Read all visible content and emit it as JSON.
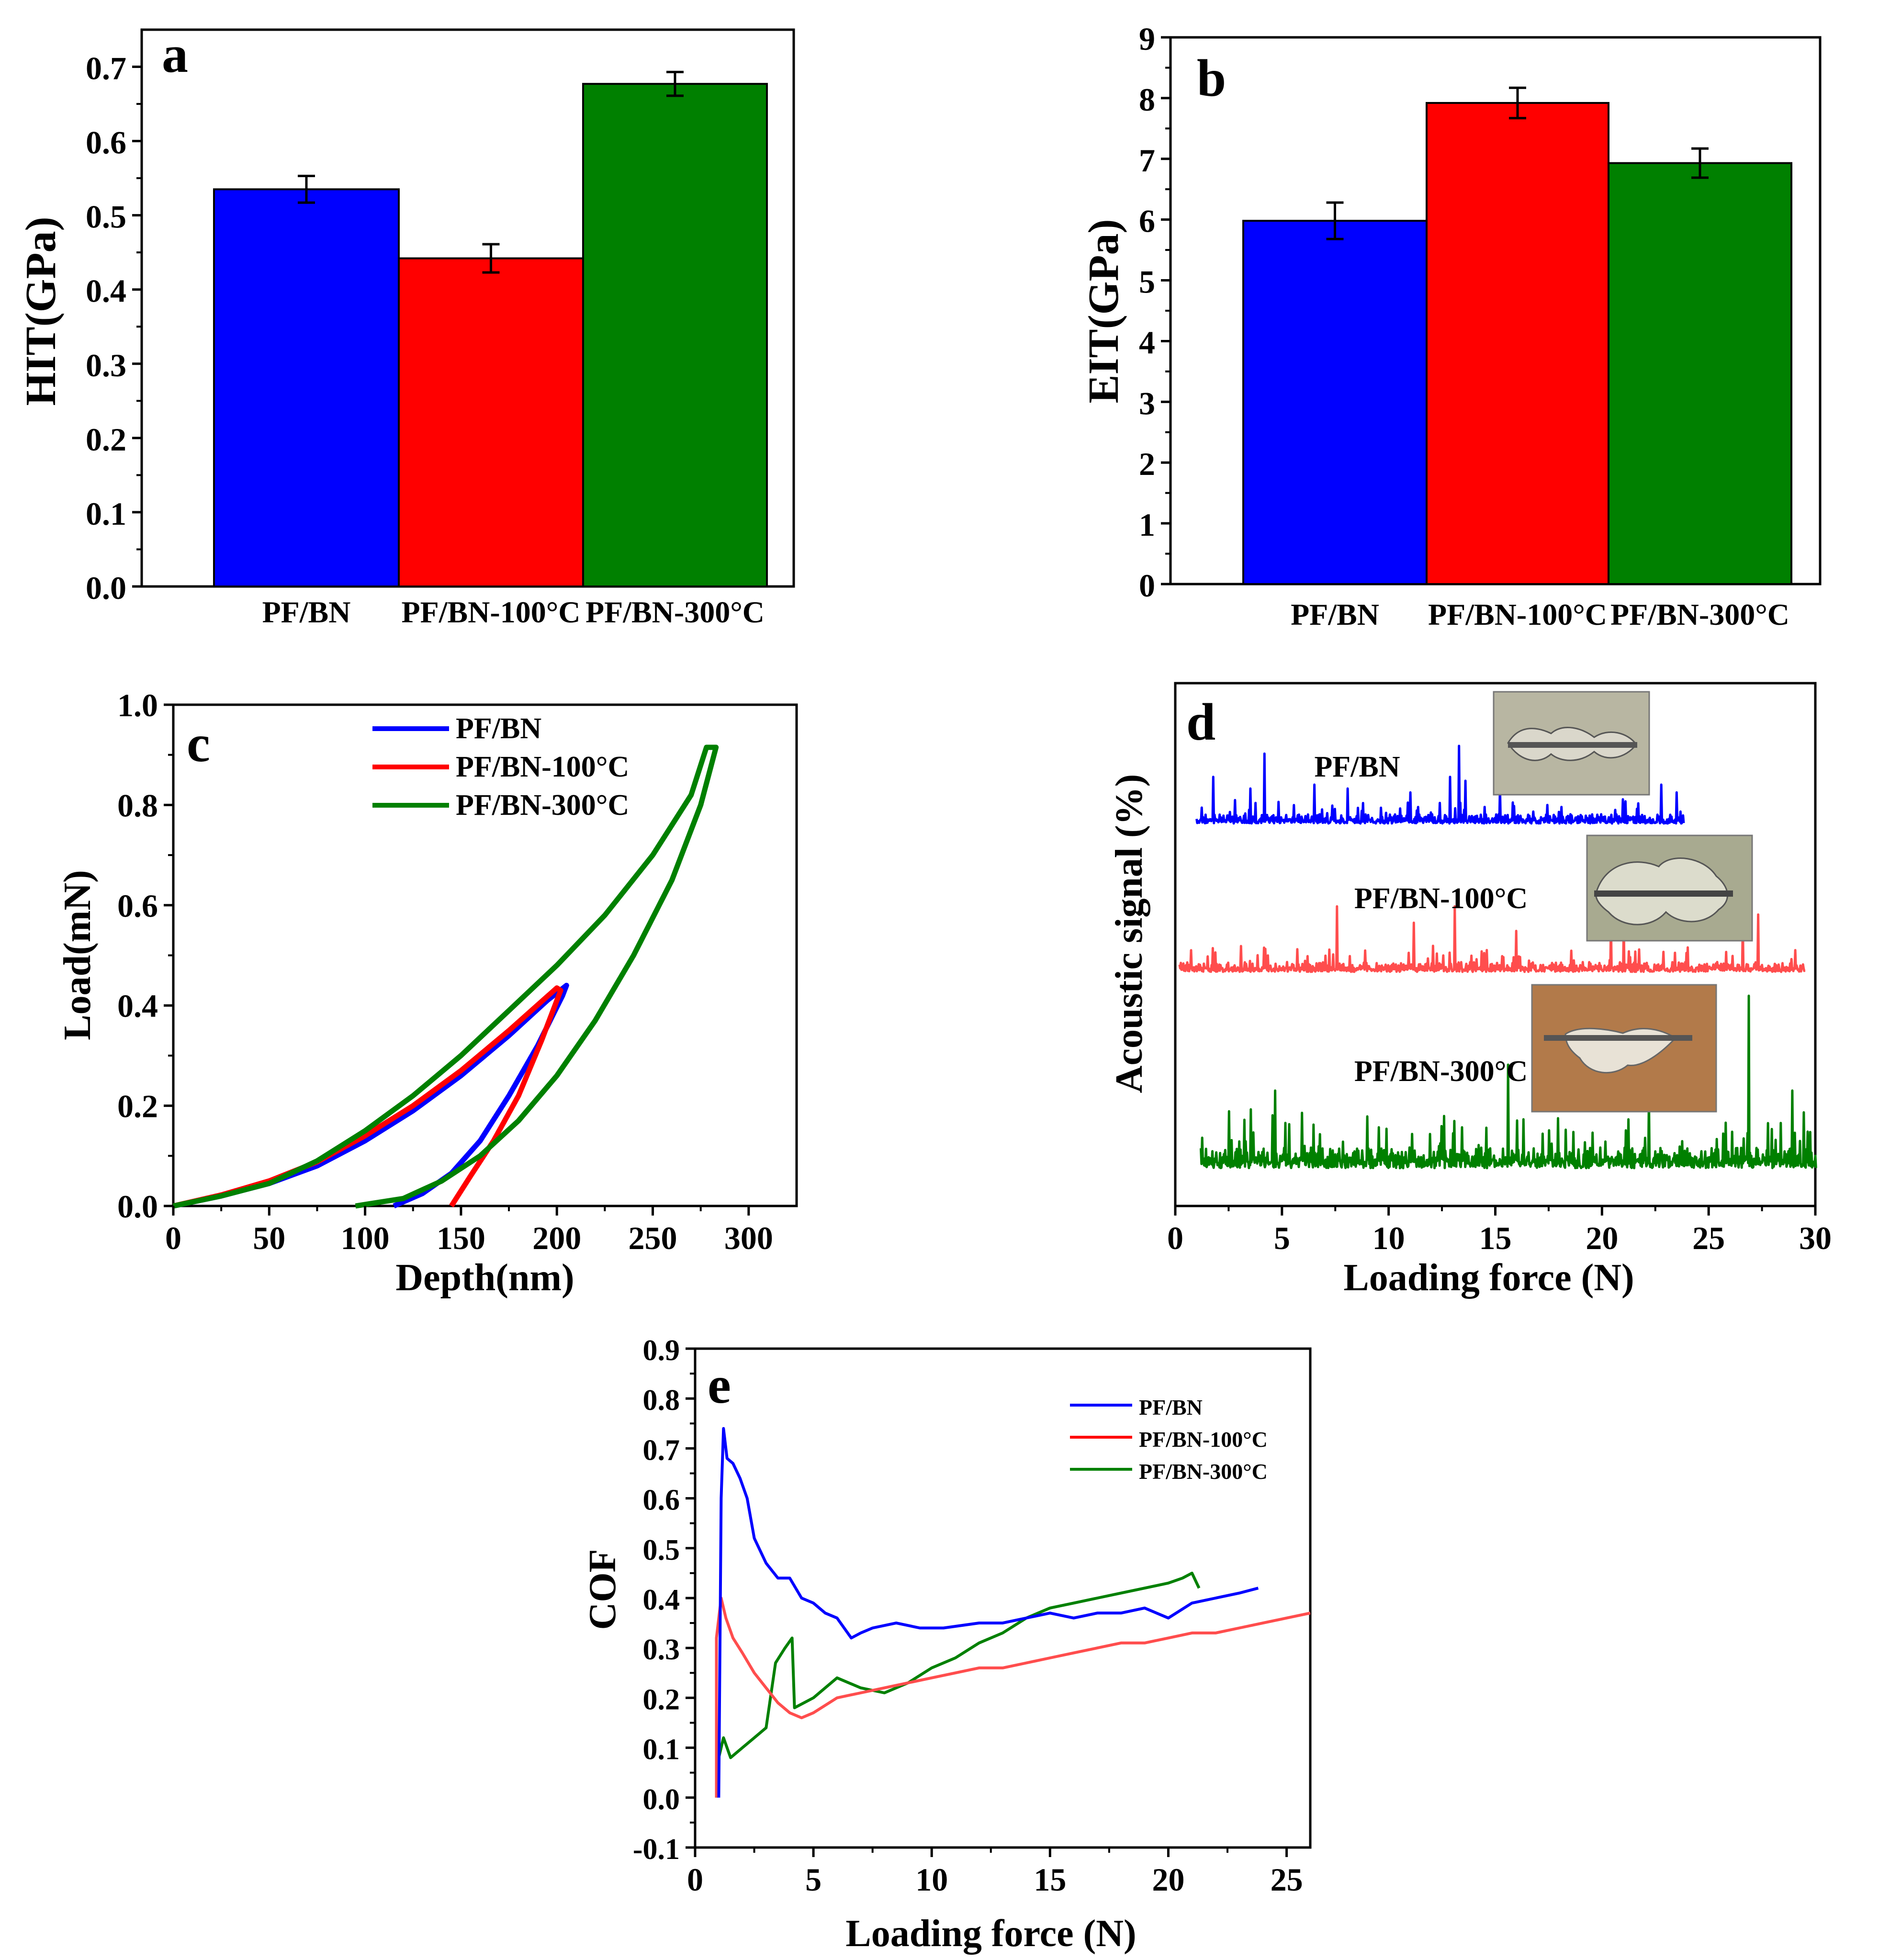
{
  "figure": {
    "colors": {
      "pf_bn": "#0000FF",
      "pf_bn_100": "#FF0000",
      "pf_bn_300": "#008000",
      "pf_bn_100_signal": "#FF4D4D",
      "axis": "#000000"
    }
  },
  "chart_data": [
    {
      "id": "a",
      "type": "bar",
      "panel_label": "a",
      "ylabel": "HIT(GPa)",
      "xlabel": "",
      "categories": [
        "PF/BN",
        "PF/BN-100°C",
        "PF/BN-300°C"
      ],
      "values": [
        0.535,
        0.442,
        0.677
      ],
      "errors": [
        0.018,
        0.019,
        0.016
      ],
      "ylim": [
        0,
        0.75
      ],
      "yticks": [
        "0.0",
        "0.1",
        "0.2",
        "0.3",
        "0.4",
        "0.5",
        "0.6",
        "0.7"
      ]
    },
    {
      "id": "b",
      "type": "bar",
      "panel_label": "b",
      "ylabel": "EIT(GPa)",
      "xlabel": "",
      "categories": [
        "PF/BN",
        "PF/BN-100°C",
        "PF/BN-300°C"
      ],
      "values": [
        5.98,
        7.92,
        6.93
      ],
      "errors": [
        0.3,
        0.25,
        0.24
      ],
      "ylim": [
        0,
        9
      ],
      "yticks": [
        "0",
        "1",
        "2",
        "3",
        "4",
        "5",
        "6",
        "7",
        "8",
        "9"
      ]
    },
    {
      "id": "c",
      "type": "line",
      "panel_label": "c",
      "xlabel": "Depth(nm)",
      "ylabel": "Load(mN)",
      "xlim": [
        0,
        325
      ],
      "ylim": [
        0,
        1.0
      ],
      "xticks": [
        "0",
        "50",
        "100",
        "150",
        "200",
        "250",
        "300"
      ],
      "yticks": [
        "0.0",
        "0.2",
        "0.4",
        "0.6",
        "0.8",
        "1.0"
      ],
      "legend": [
        "PF/BN",
        "PF/BN-100°C",
        "PF/BN-300°C"
      ],
      "series": [
        {
          "name": "PF/BN",
          "points": [
            [
              0,
              0
            ],
            [
              25,
              0.02
            ],
            [
              50,
              0.045
            ],
            [
              75,
              0.08
            ],
            [
              100,
              0.13
            ],
            [
              125,
              0.19
            ],
            [
              150,
              0.26
            ],
            [
              175,
              0.34
            ],
            [
              195,
              0.41
            ],
            [
              205,
              0.44
            ],
            [
              203,
              0.42
            ],
            [
              190,
              0.32
            ],
            [
              175,
              0.22
            ],
            [
              160,
              0.13
            ],
            [
              145,
              0.065
            ],
            [
              130,
              0.025
            ],
            [
              115,
              0
            ]
          ]
        },
        {
          "name": "PF/BN-100°C",
          "points": [
            [
              0,
              0
            ],
            [
              25,
              0.022
            ],
            [
              50,
              0.05
            ],
            [
              75,
              0.088
            ],
            [
              100,
              0.14
            ],
            [
              125,
              0.2
            ],
            [
              150,
              0.27
            ],
            [
              175,
              0.35
            ],
            [
              200,
              0.435
            ],
            [
              202,
              0.43
            ],
            [
              192,
              0.33
            ],
            [
              180,
              0.22
            ],
            [
              167,
              0.13
            ],
            [
              155,
              0.06
            ],
            [
              145,
              0
            ]
          ]
        },
        {
          "name": "PF/BN-300°C",
          "points": [
            [
              0,
              0
            ],
            [
              25,
              0.02
            ],
            [
              50,
              0.045
            ],
            [
              75,
              0.09
            ],
            [
              100,
              0.15
            ],
            [
              125,
              0.22
            ],
            [
              150,
              0.3
            ],
            [
              175,
              0.39
            ],
            [
              200,
              0.48
            ],
            [
              225,
              0.58
            ],
            [
              250,
              0.7
            ],
            [
              270,
              0.82
            ],
            [
              278,
              0.915
            ],
            [
              283,
              0.915
            ],
            [
              275,
              0.8
            ],
            [
              260,
              0.65
            ],
            [
              240,
              0.5
            ],
            [
              220,
              0.37
            ],
            [
              200,
              0.26
            ],
            [
              180,
              0.17
            ],
            [
              160,
              0.1
            ],
            [
              140,
              0.05
            ],
            [
              120,
              0.015
            ],
            [
              95,
              0
            ]
          ]
        }
      ]
    },
    {
      "id": "d",
      "type": "line",
      "panel_label": "d",
      "xlabel": "Loading force (N)",
      "ylabel": "Acoustic signal (%)",
      "xlim": [
        0,
        30
      ],
      "xticks": [
        "0",
        "5",
        "10",
        "15",
        "20",
        "25",
        "30"
      ],
      "series": [
        {
          "name": "PF/BN",
          "label": "PF/BN",
          "x_range": [
            1,
            23.8
          ],
          "spikes": [
            [
              1.8,
              0.6
            ],
            [
              3.5,
              0.45
            ],
            [
              4.2,
              0.9
            ],
            [
              6.5,
              0.5
            ],
            [
              8.1,
              0.45
            ],
            [
              11.0,
              0.4
            ],
            [
              12.9,
              0.6
            ],
            [
              13.3,
              1.0
            ],
            [
              13.6,
              0.55
            ],
            [
              15.2,
              0.45
            ],
            [
              22.8,
              0.5
            ],
            [
              23.5,
              0.4
            ]
          ]
        },
        {
          "name": "PF/BN-100°C",
          "label": "PF/BN-100°C",
          "x_range": [
            0.2,
            29.5
          ],
          "spikes": [
            [
              7.6,
              0.8
            ],
            [
              11.2,
              0.6
            ],
            [
              13.1,
              0.8
            ],
            [
              16.0,
              0.5
            ],
            [
              20.4,
              0.6
            ],
            [
              21.0,
              0.6
            ],
            [
              26.6,
              0.6
            ],
            [
              27.3,
              0.7
            ]
          ]
        },
        {
          "name": "PF/BN-300°C",
          "label": "PF/BN-300°C",
          "x_range": [
            1.2,
            30
          ],
          "spikes": [
            [
              4.7,
              0.45
            ],
            [
              9.0,
              0.3
            ],
            [
              15.6,
              0.6
            ],
            [
              17.2,
              0.2
            ],
            [
              19.2,
              0.15
            ],
            [
              22.2,
              0.4
            ],
            [
              26.9,
              1.0
            ],
            [
              28.9,
              0.45
            ]
          ]
        }
      ]
    },
    {
      "id": "e",
      "type": "line",
      "panel_label": "e",
      "xlabel": "Loading force (N)",
      "ylabel": "COF",
      "xlim": [
        0,
        26
      ],
      "ylim": [
        -0.1,
        0.9
      ],
      "xticks": [
        "0",
        "5",
        "10",
        "15",
        "20",
        "25"
      ],
      "yticks": [
        "-0.1",
        "0.0",
        "0.1",
        "0.2",
        "0.3",
        "0.4",
        "0.5",
        "0.6",
        "0.7",
        "0.8",
        "0.9"
      ],
      "legend": [
        "PF/BN",
        "PF/BN-100°C",
        "PF/BN-300°C"
      ],
      "series": [
        {
          "name": "PF/BN",
          "points": [
            [
              1.0,
              0.0
            ],
            [
              1.05,
              0.3
            ],
            [
              1.1,
              0.6
            ],
            [
              1.2,
              0.74
            ],
            [
              1.35,
              0.68
            ],
            [
              1.6,
              0.67
            ],
            [
              1.9,
              0.64
            ],
            [
              2.2,
              0.6
            ],
            [
              2.5,
              0.52
            ],
            [
              3.0,
              0.47
            ],
            [
              3.5,
              0.44
            ],
            [
              4.0,
              0.44
            ],
            [
              4.5,
              0.4
            ],
            [
              5.0,
              0.39
            ],
            [
              5.5,
              0.37
            ],
            [
              6.0,
              0.36
            ],
            [
              6.6,
              0.32
            ],
            [
              7.0,
              0.33
            ],
            [
              7.5,
              0.34
            ],
            [
              8.5,
              0.35
            ],
            [
              9.5,
              0.34
            ],
            [
              10.5,
              0.34
            ],
            [
              12,
              0.35
            ],
            [
              13,
              0.35
            ],
            [
              14,
              0.36
            ],
            [
              15,
              0.37
            ],
            [
              16,
              0.36
            ],
            [
              17,
              0.37
            ],
            [
              18,
              0.37
            ],
            [
              19,
              0.38
            ],
            [
              20,
              0.36
            ],
            [
              21,
              0.39
            ],
            [
              22,
              0.4
            ],
            [
              23,
              0.41
            ],
            [
              23.8,
              0.42
            ]
          ]
        },
        {
          "name": "PF/BN-100°C",
          "points": [
            [
              0.9,
              0.0
            ],
            [
              0.9,
              0.32
            ],
            [
              1.1,
              0.4
            ],
            [
              1.3,
              0.36
            ],
            [
              1.6,
              0.32
            ],
            [
              2.0,
              0.29
            ],
            [
              2.5,
              0.25
            ],
            [
              3.0,
              0.22
            ],
            [
              3.5,
              0.19
            ],
            [
              4.0,
              0.17
            ],
            [
              4.5,
              0.16
            ],
            [
              5.0,
              0.17
            ],
            [
              6,
              0.2
            ],
            [
              7,
              0.21
            ],
            [
              8,
              0.22
            ],
            [
              9,
              0.23
            ],
            [
              10,
              0.24
            ],
            [
              11,
              0.25
            ],
            [
              12,
              0.26
            ],
            [
              13,
              0.26
            ],
            [
              14,
              0.27
            ],
            [
              15,
              0.28
            ],
            [
              16,
              0.29
            ],
            [
              17,
              0.3
            ],
            [
              18,
              0.31
            ],
            [
              19,
              0.31
            ],
            [
              20,
              0.32
            ],
            [
              21,
              0.33
            ],
            [
              22,
              0.33
            ],
            [
              23,
              0.34
            ],
            [
              24,
              0.35
            ],
            [
              25,
              0.36
            ],
            [
              26,
              0.37
            ]
          ]
        },
        {
          "name": "PF/BN-300°C",
          "points": [
            [
              0.9,
              0.0
            ],
            [
              1.0,
              0.08
            ],
            [
              1.2,
              0.12
            ],
            [
              1.5,
              0.08
            ],
            [
              2.0,
              0.1
            ],
            [
              2.5,
              0.12
            ],
            [
              3.0,
              0.14
            ],
            [
              3.4,
              0.27
            ],
            [
              3.8,
              0.3
            ],
            [
              4.1,
              0.32
            ],
            [
              4.2,
              0.18
            ],
            [
              5.0,
              0.2
            ],
            [
              5.5,
              0.22
            ],
            [
              6,
              0.24
            ],
            [
              7,
              0.22
            ],
            [
              8,
              0.21
            ],
            [
              9,
              0.23
            ],
            [
              10,
              0.26
            ],
            [
              11,
              0.28
            ],
            [
              12,
              0.31
            ],
            [
              13,
              0.33
            ],
            [
              14,
              0.36
            ],
            [
              15,
              0.38
            ],
            [
              16,
              0.39
            ],
            [
              17,
              0.4
            ],
            [
              18,
              0.41
            ],
            [
              19,
              0.42
            ],
            [
              20,
              0.43
            ],
            [
              20.6,
              0.44
            ],
            [
              21.0,
              0.45
            ],
            [
              21.3,
              0.42
            ]
          ]
        }
      ]
    }
  ]
}
